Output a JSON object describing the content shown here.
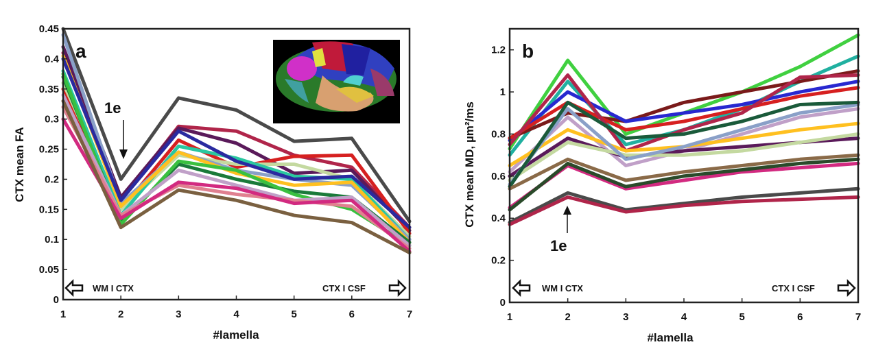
{
  "chart_data": [
    {
      "type": "line",
      "panel_label": "a",
      "xlabel": "#lamella",
      "ylabel": "CTX  mean  FA",
      "xlim": [
        1,
        7
      ],
      "ylim": [
        0,
        0.45
      ],
      "x": [
        1,
        2,
        3,
        4,
        5,
        6,
        7
      ],
      "xticks": [
        "1",
        "2",
        "3",
        "4",
        "5",
        "6",
        "7"
      ],
      "yticks": [
        "0",
        "0.05",
        "0.1",
        "0.15",
        "0.2",
        "0.25",
        "0.3",
        "0.35",
        "0.4",
        "0.45"
      ],
      "left_region": "WM I CTX",
      "right_region": "CTX I CSF",
      "annotation": {
        "text": "1e",
        "x": 2,
        "y": 0.2
      },
      "inset": "cortical parcellation brain surface",
      "series": [
        {
          "name": "s1",
          "color": "#4a4a4a",
          "values": [
            0.45,
            0.2,
            0.335,
            0.315,
            0.263,
            0.268,
            0.13
          ]
        },
        {
          "name": "s2",
          "color": "#b0254a",
          "values": [
            0.41,
            0.165,
            0.288,
            0.28,
            0.24,
            0.22,
            0.12
          ]
        },
        {
          "name": "s3",
          "color": "#5a1a5a",
          "values": [
            0.42,
            0.17,
            0.285,
            0.26,
            0.21,
            0.215,
            0.115
          ]
        },
        {
          "name": "s4",
          "color": "#d62020",
          "values": [
            0.35,
            0.15,
            0.265,
            0.22,
            0.238,
            0.24,
            0.11
          ]
        },
        {
          "name": "s5",
          "color": "#c4d9a0",
          "values": [
            0.36,
            0.15,
            0.24,
            0.225,
            0.225,
            0.2,
            0.105
          ]
        },
        {
          "name": "s6",
          "color": "#2ac7a0",
          "values": [
            0.38,
            0.14,
            0.255,
            0.235,
            0.205,
            0.2,
            0.1
          ]
        },
        {
          "name": "s7",
          "color": "#8aa0c8",
          "values": [
            0.44,
            0.16,
            0.245,
            0.215,
            0.2,
            0.19,
            0.1
          ]
        },
        {
          "name": "s8",
          "color": "#ffc020",
          "values": [
            0.405,
            0.155,
            0.245,
            0.21,
            0.19,
            0.195,
            0.095
          ]
        },
        {
          "name": "s9",
          "color": "#1a7a3a",
          "values": [
            0.37,
            0.13,
            0.225,
            0.2,
            0.18,
            0.17,
            0.095
          ]
        },
        {
          "name": "s10",
          "color": "#3ac040",
          "values": [
            0.375,
            0.125,
            0.23,
            0.215,
            0.175,
            0.15,
            0.09
          ]
        },
        {
          "name": "s11",
          "color": "#c0a0c8",
          "values": [
            0.34,
            0.14,
            0.215,
            0.19,
            0.165,
            0.17,
            0.09
          ]
        },
        {
          "name": "s12",
          "color": "#e08090",
          "values": [
            0.32,
            0.14,
            0.19,
            0.175,
            0.165,
            0.155,
            0.085
          ]
        },
        {
          "name": "s13",
          "color": "#d22a80",
          "values": [
            0.3,
            0.135,
            0.195,
            0.185,
            0.16,
            0.165,
            0.08
          ]
        },
        {
          "name": "s14",
          "color": "#7a6040",
          "values": [
            0.33,
            0.12,
            0.182,
            0.165,
            0.14,
            0.128,
            0.078
          ]
        },
        {
          "name": "s15",
          "color": "#2a2aa0",
          "values": [
            0.4,
            0.165,
            0.28,
            0.23,
            0.2,
            0.205,
            0.12
          ]
        }
      ]
    },
    {
      "type": "line",
      "panel_label": "b",
      "xlabel": "#lamella",
      "ylabel": "CTX  mean  MD, µm²/ms",
      "xlim": [
        1,
        7
      ],
      "ylim": [
        0,
        1.3
      ],
      "x": [
        1,
        2,
        3,
        4,
        5,
        6,
        7
      ],
      "xticks": [
        "1",
        "2",
        "3",
        "4",
        "5",
        "6",
        "7"
      ],
      "yticks": [
        "0",
        "0.2",
        "0.4",
        "0.6",
        "0.8",
        "1",
        "1.2"
      ],
      "left_region": "WM I CTX",
      "right_region": "CTX I CSF",
      "annotation": {
        "text": "1e",
        "x": 2,
        "y": 0.45
      },
      "series": [
        {
          "name": "s1",
          "color": "#40d040",
          "values": [
            0.73,
            1.15,
            0.8,
            0.9,
            1.0,
            1.12,
            1.27
          ]
        },
        {
          "name": "s2",
          "color": "#20b0a0",
          "values": [
            0.7,
            1.05,
            0.75,
            0.82,
            0.92,
            1.05,
            1.17
          ]
        },
        {
          "name": "s3",
          "color": "#7a1a1a",
          "values": [
            0.78,
            0.9,
            0.86,
            0.95,
            1.0,
            1.05,
            1.1
          ]
        },
        {
          "name": "s4",
          "color": "#2828d0",
          "values": [
            0.77,
            1.0,
            0.86,
            0.9,
            0.94,
            1.0,
            1.05
          ]
        },
        {
          "name": "s5",
          "color": "#d62020",
          "values": [
            0.78,
            0.95,
            0.82,
            0.86,
            0.92,
            0.98,
            1.02
          ]
        },
        {
          "name": "s6",
          "color": "#b0254a",
          "values": [
            0.75,
            1.08,
            0.72,
            0.82,
            0.9,
            1.07,
            1.08
          ]
        },
        {
          "name": "s7",
          "color": "#c0a0c8",
          "values": [
            0.62,
            0.88,
            0.65,
            0.72,
            0.8,
            0.88,
            0.92
          ]
        },
        {
          "name": "s8",
          "color": "#ffc020",
          "values": [
            0.65,
            0.82,
            0.72,
            0.74,
            0.78,
            0.82,
            0.85
          ]
        },
        {
          "name": "s9",
          "color": "#5a1a5a",
          "values": [
            0.6,
            0.78,
            0.69,
            0.72,
            0.74,
            0.76,
            0.78
          ]
        },
        {
          "name": "s10",
          "color": "#c4d9a0",
          "values": [
            0.58,
            0.76,
            0.7,
            0.7,
            0.72,
            0.76,
            0.8
          ]
        },
        {
          "name": "s11",
          "color": "#8aa0c8",
          "values": [
            0.56,
            0.92,
            0.68,
            0.74,
            0.82,
            0.9,
            0.94
          ]
        },
        {
          "name": "s12",
          "color": "#1a5a3a",
          "values": [
            0.55,
            0.95,
            0.78,
            0.8,
            0.86,
            0.94,
            0.95
          ]
        },
        {
          "name": "s13",
          "color": "#8a6a48",
          "values": [
            0.54,
            0.68,
            0.58,
            0.62,
            0.65,
            0.68,
            0.7
          ]
        },
        {
          "name": "s14",
          "color": "#d22a80",
          "values": [
            0.45,
            0.65,
            0.54,
            0.58,
            0.62,
            0.64,
            0.66
          ]
        },
        {
          "name": "s15",
          "color": "#2a4a2a",
          "values": [
            0.44,
            0.66,
            0.55,
            0.6,
            0.63,
            0.66,
            0.68
          ]
        },
        {
          "name": "s16",
          "color": "#4a4a4a",
          "values": [
            0.38,
            0.52,
            0.44,
            0.47,
            0.5,
            0.52,
            0.54
          ]
        },
        {
          "name": "s17",
          "color": "#b0254a",
          "values": [
            0.37,
            0.5,
            0.43,
            0.46,
            0.48,
            0.49,
            0.5
          ]
        }
      ]
    }
  ]
}
